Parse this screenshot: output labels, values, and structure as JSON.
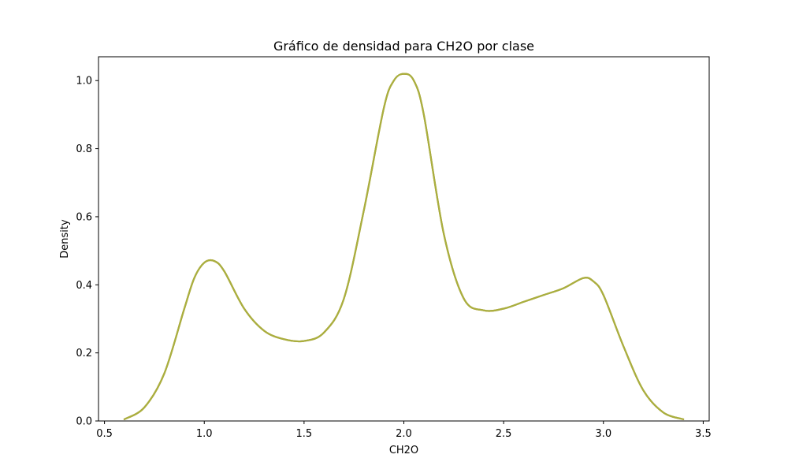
{
  "chart_data": {
    "type": "line",
    "title": "Gráfico de densidad para CH2O por clase",
    "xlabel": "CH2O",
    "ylabel": "Density",
    "xlim": [
      0.47,
      3.53
    ],
    "ylim": [
      0,
      1.07
    ],
    "grid": false,
    "x_ticks": [
      0.5,
      1.0,
      1.5,
      2.0,
      2.5,
      3.0,
      3.5
    ],
    "x_tick_labels": [
      "0.5",
      "1.0",
      "1.5",
      "2.0",
      "2.5",
      "3.0",
      "3.5"
    ],
    "y_ticks": [
      0.0,
      0.2,
      0.4,
      0.6,
      0.8,
      1.0
    ],
    "y_tick_labels": [
      "0.0",
      "0.2",
      "0.4",
      "0.6",
      "0.8",
      "1.0"
    ],
    "line_colors": [
      "#5b9a6b",
      "#c9a227",
      "#a8b040"
    ],
    "series": [
      {
        "x": [
          0.6,
          0.7,
          0.8,
          0.9,
          0.95,
          1.0,
          1.05,
          1.1,
          1.2,
          1.3,
          1.4,
          1.5,
          1.6,
          1.7,
          1.8,
          1.9,
          1.95,
          2.0,
          2.05,
          2.1,
          2.2,
          2.3,
          2.4,
          2.5,
          2.6,
          2.7,
          2.8,
          2.9,
          2.95,
          3.0,
          3.1,
          3.2,
          3.3,
          3.4
        ],
        "y": [
          0.005,
          0.04,
          0.14,
          0.33,
          0.42,
          0.465,
          0.47,
          0.44,
          0.33,
          0.265,
          0.24,
          0.235,
          0.26,
          0.36,
          0.62,
          0.92,
          1.0,
          1.02,
          1.0,
          0.9,
          0.55,
          0.36,
          0.325,
          0.33,
          0.35,
          0.37,
          0.39,
          0.42,
          0.41,
          0.37,
          0.22,
          0.09,
          0.025,
          0.005
        ]
      }
    ]
  }
}
